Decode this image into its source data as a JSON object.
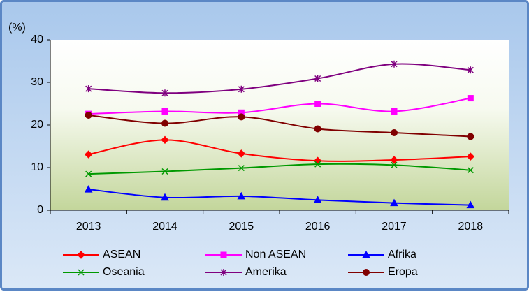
{
  "chart_data": {
    "type": "line",
    "y_label": "(%)",
    "categories": [
      "2013",
      "2014",
      "2015",
      "2016",
      "2017",
      "2018"
    ],
    "series": [
      {
        "name": "ASEAN",
        "color": "#ff0000",
        "marker": "diamond",
        "values": [
          13.1,
          16.5,
          13.3,
          11.6,
          11.8,
          12.6
        ]
      },
      {
        "name": "Non ASEAN",
        "color": "#ff00ff",
        "marker": "square",
        "values": [
          22.6,
          23.2,
          22.9,
          25.0,
          23.2,
          26.3
        ]
      },
      {
        "name": "Afrika",
        "color": "#0000ff",
        "marker": "triangle",
        "values": [
          4.9,
          3.0,
          3.3,
          2.4,
          1.7,
          1.2
        ]
      },
      {
        "name": "Oseania",
        "color": "#009900",
        "marker": "x",
        "values": [
          8.5,
          9.1,
          9.9,
          10.8,
          10.6,
          9.4
        ]
      },
      {
        "name": "Amerika",
        "color": "#7f007f",
        "marker": "star",
        "values": [
          28.5,
          27.5,
          28.4,
          30.9,
          34.3,
          32.9
        ]
      },
      {
        "name": "Eropa",
        "color": "#800000",
        "marker": "circle",
        "values": [
          22.3,
          20.4,
          21.9,
          19.1,
          18.2,
          17.3
        ]
      }
    ],
    "ylim": [
      0,
      40
    ],
    "yticks": [
      0,
      10,
      20,
      30,
      40
    ],
    "grid": false,
    "smooth": true,
    "legend": "bottom"
  }
}
